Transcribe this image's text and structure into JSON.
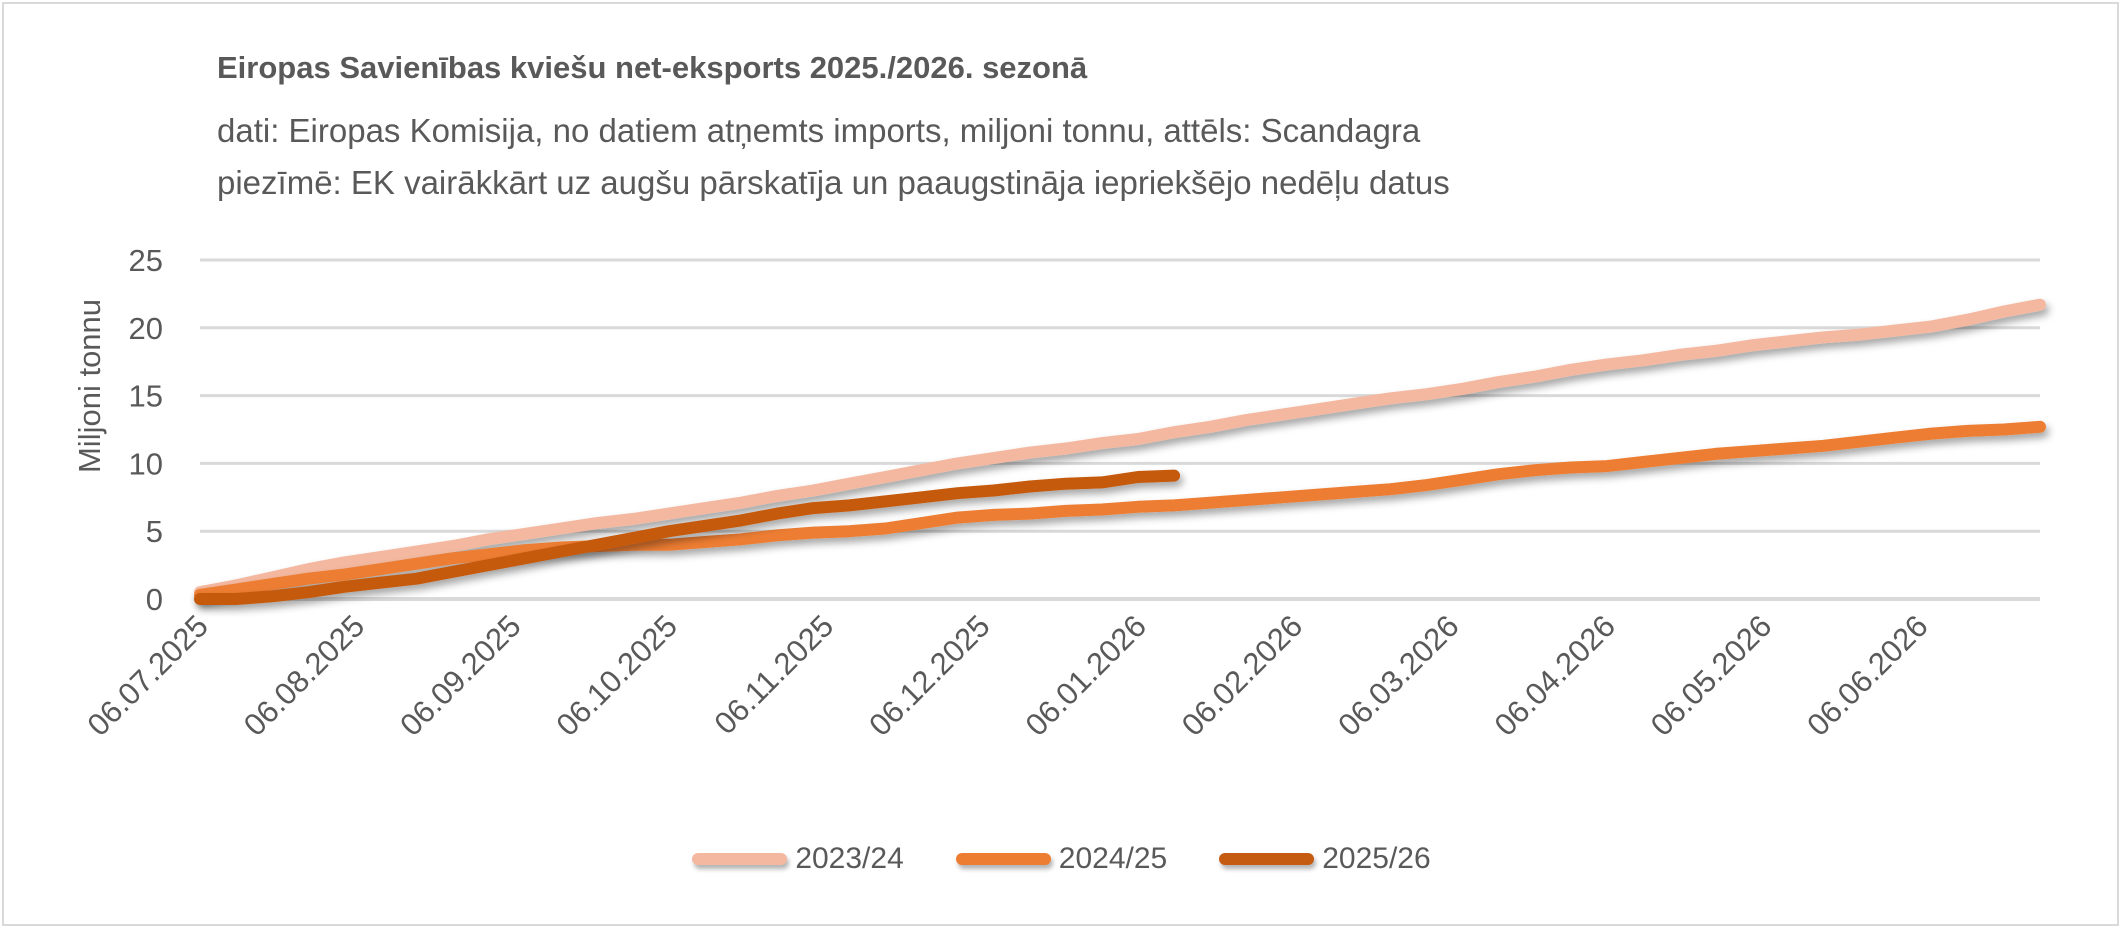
{
  "chart_data": {
    "type": "line",
    "title": "Eiropas Savienības kviešu net-eksports 2025./2026. sezonā",
    "subtitle": "dati: Eiropas Komisija, no datiem atņemts imports, miljoni tonnu, attēls: Scandagra",
    "note": "piezīmē: EK vairākkārt uz augšu pārskatīja un paaugstināja iepriekšējo nedēļu datus",
    "xlabel": "",
    "ylabel": "Miljoni tonnu",
    "ylim": [
      0,
      25
    ],
    "yticks": [
      0,
      5,
      10,
      15,
      20,
      25
    ],
    "x_points": 52,
    "x_tick_labels": [
      "06.07.2025",
      "06.08.2025",
      "06.09.2025",
      "06.10.2025",
      "06.11.2025",
      "06.12.2025",
      "06.01.2026",
      "06.02.2026",
      "06.03.2026",
      "06.04.2026",
      "06.05.2026",
      "06.06.2026"
    ],
    "grid": true,
    "legend_position": "bottom",
    "series": [
      {
        "name": "2023/24",
        "color": "#F4B8A0",
        "values": [
          0.5,
          1.0,
          1.6,
          2.2,
          2.7,
          3.1,
          3.5,
          3.9,
          4.4,
          4.8,
          5.2,
          5.6,
          5.9,
          6.3,
          6.7,
          7.1,
          7.6,
          8.0,
          8.5,
          9.0,
          9.5,
          10.0,
          10.4,
          10.8,
          11.1,
          11.5,
          11.8,
          12.3,
          12.7,
          13.2,
          13.6,
          14.0,
          14.4,
          14.8,
          15.1,
          15.5,
          16.0,
          16.4,
          16.9,
          17.3,
          17.6,
          18.0,
          18.3,
          18.7,
          19.0,
          19.3,
          19.5,
          19.8,
          20.1,
          20.6,
          21.2,
          21.7
        ]
      },
      {
        "name": "2024/25",
        "color": "#ED7D31",
        "values": [
          0.3,
          0.7,
          1.1,
          1.5,
          1.8,
          2.2,
          2.6,
          3.0,
          3.3,
          3.6,
          3.8,
          3.9,
          4.0,
          4.0,
          4.2,
          4.4,
          4.7,
          4.9,
          5.0,
          5.2,
          5.6,
          6.0,
          6.2,
          6.3,
          6.5,
          6.6,
          6.8,
          6.9,
          7.1,
          7.3,
          7.5,
          7.7,
          7.9,
          8.1,
          8.4,
          8.8,
          9.2,
          9.5,
          9.7,
          9.8,
          10.1,
          10.4,
          10.7,
          10.9,
          11.1,
          11.3,
          11.6,
          11.9,
          12.2,
          12.4,
          12.5,
          12.7
        ]
      },
      {
        "name": "2025/26",
        "color": "#C55A11",
        "values": [
          0,
          0,
          0.2,
          0.5,
          0.9,
          1.2,
          1.5,
          2.0,
          2.5,
          3.0,
          3.5,
          4.0,
          4.5,
          5.0,
          5.4,
          5.8,
          6.3,
          6.7,
          6.9,
          7.2,
          7.5,
          7.8,
          8.0,
          8.3,
          8.5,
          8.6,
          9.0,
          9.1
        ]
      }
    ]
  }
}
